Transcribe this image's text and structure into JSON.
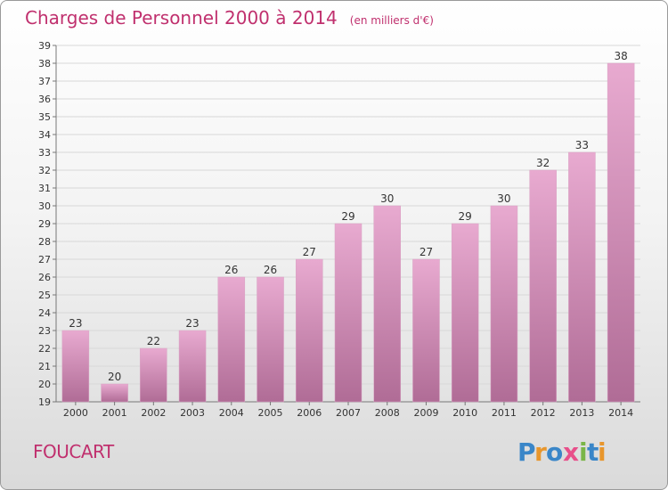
{
  "header": {
    "title": "Charges de Personnel 2000 à 2014",
    "subtitle": "(en milliers d'€)"
  },
  "footer": {
    "commune": "FOUCART",
    "logo_text": "Proxiti"
  },
  "colors": {
    "title": "#c0306e",
    "bar_top": "#e8aad0",
    "bar_bottom": "#b06c96",
    "grid": "#d8d8d8"
  },
  "chart_data": {
    "type": "bar",
    "categories": [
      "2000",
      "2001",
      "2002",
      "2003",
      "2004",
      "2005",
      "2006",
      "2007",
      "2008",
      "2009",
      "2010",
      "2011",
      "2012",
      "2013",
      "2014"
    ],
    "values": [
      23,
      20,
      22,
      23,
      26,
      26,
      27,
      29,
      30,
      27,
      29,
      30,
      32,
      33,
      38
    ],
    "title": "Charges de Personnel 2000 à 2014",
    "subtitle": "(en milliers d'€)",
    "ylim": [
      19,
      39
    ],
    "yticks": [
      19,
      20,
      21,
      22,
      23,
      24,
      25,
      26,
      27,
      28,
      29,
      30,
      31,
      32,
      33,
      34,
      35,
      36,
      37,
      38,
      39
    ],
    "grid": true,
    "legend": "none"
  }
}
